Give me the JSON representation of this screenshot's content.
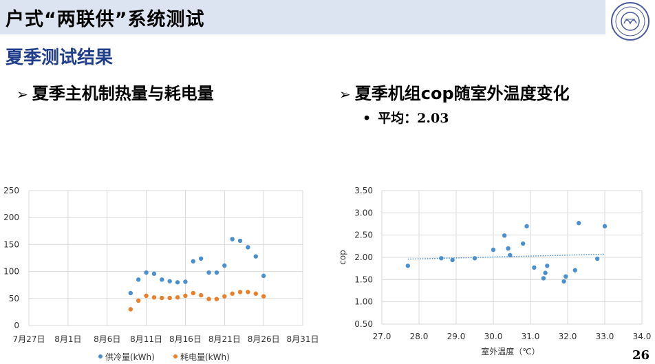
{
  "header": {
    "title": "户式“两联供”系统测试",
    "section": "夏季测试结果"
  },
  "left": {
    "bullet": "夏季主机制热量与耗电量"
  },
  "right": {
    "bullet": "夏季机组cop随室外温度变化",
    "sub_bullet": "平均：2.03"
  },
  "page_number": "26",
  "colors": {
    "series_blue": "#4a90cf",
    "series_orange": "#e8802c",
    "grid": "#d9d9d9",
    "header_bg": "#dce3f1",
    "section_title": "#1f3d8a"
  },
  "icons": {
    "logo": "university-seal-icon",
    "bullet_marker": "arrow-bullet-icon"
  },
  "chart_data": [
    {
      "type": "scatter",
      "title": "",
      "xlabel": "",
      "ylabel": "",
      "x_axis_type": "date",
      "xlim": [
        "7月27日",
        "8月31日"
      ],
      "ylim": [
        0,
        250
      ],
      "ytick_step": 50,
      "xticks": [
        "7月27日",
        "8月1日",
        "8月6日",
        "8月11日",
        "8月16日",
        "8月21日",
        "8月26日",
        "8月31日"
      ],
      "yticks": [
        "0",
        "50",
        "100",
        "150",
        "200",
        "250"
      ],
      "grid": true,
      "legend_position": "bottom",
      "series": [
        {
          "name": "供冷量(kWh)",
          "color": "#4a90cf",
          "points": [
            [
              "8月9日",
              60
            ],
            [
              "8月10日",
              85
            ],
            [
              "8月11日",
              98
            ],
            [
              "8月12日",
              96
            ],
            [
              "8月13日",
              85
            ],
            [
              "8月14日",
              82
            ],
            [
              "8月15日",
              80
            ],
            [
              "8月16日",
              81
            ],
            [
              "8月17日",
              119
            ],
            [
              "8月18日",
              124
            ],
            [
              "8月19日",
              98
            ],
            [
              "8月20日",
              98
            ],
            [
              "8月21日",
              111
            ],
            [
              "8月22日",
              160
            ],
            [
              "8月23日",
              157
            ],
            [
              "8月24日",
              145
            ],
            [
              "8月25日",
              128
            ],
            [
              "8月26日",
              92
            ]
          ]
        },
        {
          "name": "耗电量(kWh)",
          "color": "#e8802c",
          "points": [
            [
              "8月9日",
              30
            ],
            [
              "8月10日",
              46
            ],
            [
              "8月11日",
              55
            ],
            [
              "8月12日",
              52
            ],
            [
              "8月13日",
              51
            ],
            [
              "8月14日",
              51
            ],
            [
              "8月15日",
              52
            ],
            [
              "8月16日",
              55
            ],
            [
              "8月17日",
              60
            ],
            [
              "8月18日",
              56
            ],
            [
              "8月19日",
              49
            ],
            [
              "8月20日",
              49
            ],
            [
              "8月21日",
              54
            ],
            [
              "8月22日",
              59
            ],
            [
              "8月23日",
              62
            ],
            [
              "8月24日",
              62
            ],
            [
              "8月25日",
              59
            ],
            [
              "8月26日",
              54
            ]
          ]
        }
      ]
    },
    {
      "type": "scatter",
      "title": "",
      "xlabel": "室外温度（℃）",
      "ylabel": "cop",
      "xlim": [
        27.0,
        34.0
      ],
      "ylim": [
        0.5,
        3.5
      ],
      "xticks": [
        "27.0",
        "28.0",
        "29.0",
        "30.0",
        "31.0",
        "32.0",
        "33.0",
        "34.0"
      ],
      "yticks": [
        "0.50",
        "1.00",
        "1.50",
        "2.00",
        "2.50",
        "3.00",
        "3.50"
      ],
      "grid": true,
      "trendline": {
        "type": "linear",
        "style": "dotted",
        "from": [
          27.7,
          1.96
        ],
        "to": [
          33.0,
          2.07
        ]
      },
      "series": [
        {
          "color": "#4a90cf",
          "points": [
            [
              27.7,
              1.81
            ],
            [
              28.6,
              1.98
            ],
            [
              28.9,
              1.94
            ],
            [
              29.5,
              1.98
            ],
            [
              30.0,
              2.17
            ],
            [
              30.3,
              2.49
            ],
            [
              30.4,
              2.2
            ],
            [
              30.45,
              2.05
            ],
            [
              30.8,
              2.31
            ],
            [
              30.9,
              2.7
            ],
            [
              31.1,
              1.77
            ],
            [
              31.35,
              1.53
            ],
            [
              31.4,
              1.65
            ],
            [
              31.45,
              1.81
            ],
            [
              31.9,
              1.46
            ],
            [
              31.95,
              1.57
            ],
            [
              32.2,
              1.71
            ],
            [
              32.3,
              2.77
            ],
            [
              32.8,
              1.97
            ],
            [
              33.0,
              2.7
            ]
          ]
        }
      ]
    }
  ]
}
